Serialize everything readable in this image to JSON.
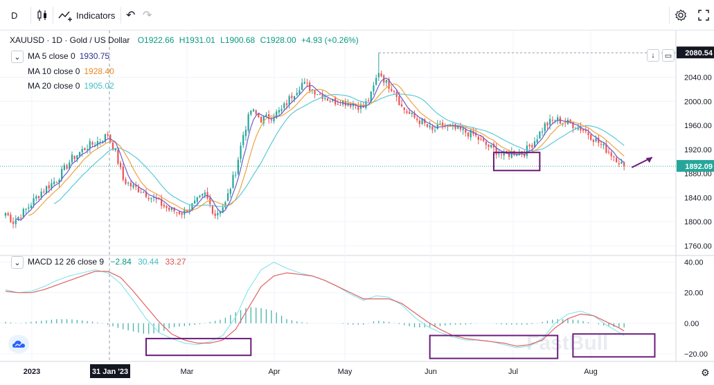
{
  "toolbar": {
    "interval": "D",
    "indicators_label": "Indicators"
  },
  "header": {
    "symbol": "XAUUSD · 1D · Gold / US Dollar",
    "open": "O1922.66",
    "high": "H1931.01",
    "low": "L1900.68",
    "close": "C1928.00",
    "change": "+4.93 (+0.26%)"
  },
  "ma_legend": [
    {
      "label": "MA 5 close 0",
      "value": "1930.75",
      "color": "#2b2d8f"
    },
    {
      "label": "MA 10 close 0",
      "value": "1928.40",
      "color": "#e8871e"
    },
    {
      "label": "MA 20 close 0",
      "value": "1905.02",
      "color": "#42bfc5"
    }
  ],
  "macd_legend": {
    "label": "MACD 12 26 close 9",
    "hist": "−2.84",
    "macd": "30.44",
    "signal": "33.27"
  },
  "watermark": "FastBull",
  "colors": {
    "up": "#26a69a",
    "down": "#ef5350",
    "ma5": "#6a5acd",
    "ma10": "#f0a040",
    "ma20": "#5bc8d8",
    "macd": "#8ee4ee",
    "signal": "#e06060",
    "hist_up": "#26a69a",
    "hist_down": "#26a69a",
    "box": "#6a1b7a",
    "arrow": "#6a1b7a"
  },
  "chart_data": [
    {
      "type": "candlestick",
      "title": "XAUUSD · 1D · Gold / US Dollar",
      "x_tick_labels": [
        "2023",
        "31 Jan '23",
        "Mar",
        "Apr",
        "May",
        "Jun",
        "Jul",
        "Aug"
      ],
      "x_tick_months": [
        "2023-01",
        "2023-01-31",
        "2023-03",
        "2023-04",
        "2023-05",
        "2023-06",
        "2023-07",
        "2023-08"
      ],
      "y_ticks": [
        1760,
        1800,
        1840,
        1880,
        1920,
        1960,
        2000,
        2040
      ],
      "ylim": [
        1745,
        2090
      ],
      "price_path": [
        [
          0,
          1815
        ],
        [
          3,
          1800
        ],
        [
          8,
          1820
        ],
        [
          14,
          1850
        ],
        [
          20,
          1870
        ],
        [
          26,
          1905
        ],
        [
          32,
          1925
        ],
        [
          37,
          1935
        ],
        [
          40,
          1945
        ],
        [
          43,
          1915
        ],
        [
          46,
          1870
        ],
        [
          49,
          1860
        ],
        [
          54,
          1850
        ],
        [
          59,
          1835
        ],
        [
          64,
          1820
        ],
        [
          69,
          1815
        ],
        [
          74,
          1830
        ],
        [
          78,
          1845
        ],
        [
          82,
          1812
        ],
        [
          86,
          1830
        ],
        [
          90,
          1885
        ],
        [
          93,
          1945
        ],
        [
          96,
          1985
        ],
        [
          100,
          1970
        ],
        [
          104,
          1975
        ],
        [
          108,
          1985
        ],
        [
          112,
          2010
        ],
        [
          116,
          2030
        ],
        [
          120,
          2020
        ],
        [
          124,
          2010
        ],
        [
          128,
          2000
        ],
        [
          132,
          2000
        ],
        [
          136,
          1995
        ],
        [
          140,
          1990
        ],
        [
          143,
          2010
        ],
        [
          146,
          2050
        ],
        [
          149,
          2030
        ],
        [
          152,
          2020
        ],
        [
          155,
          1990
        ],
        [
          159,
          1975
        ],
        [
          163,
          1965
        ],
        [
          167,
          1950
        ],
        [
          171,
          1960
        ],
        [
          175,
          1955
        ],
        [
          179,
          1950
        ],
        [
          183,
          1945
        ],
        [
          187,
          1930
        ],
        [
          191,
          1920
        ],
        [
          195,
          1910
        ],
        [
          199,
          1915
        ],
        [
          203,
          1915
        ],
        [
          207,
          1935
        ],
        [
          211,
          1960
        ],
        [
          215,
          1970
        ],
        [
          219,
          1965
        ],
        [
          223,
          1960
        ],
        [
          227,
          1950
        ],
        [
          231,
          1935
        ],
        [
          235,
          1920
        ],
        [
          239,
          1905
        ],
        [
          242,
          1892
        ]
      ],
      "last_price_label": "1892.09",
      "high_price_label": "2080.54",
      "last_price": 1892.09,
      "high_price": 2080.54,
      "series": [
        {
          "name": "MA 5 close 0",
          "value": 1930.75
        },
        {
          "name": "MA 10 close 0",
          "value": 1928.4
        },
        {
          "name": "MA 20 close 0",
          "value": 1905.02
        }
      ]
    },
    {
      "type": "line",
      "title": "MACD 12 26 close 9",
      "y_ticks": [
        -20,
        0,
        20,
        40
      ],
      "ylim": [
        -25,
        43
      ],
      "series": [
        {
          "name": "MACD",
          "points": [
            [
              0,
              22
            ],
            [
              5,
              20
            ],
            [
              10,
              21
            ],
            [
              15,
              24
            ],
            [
              20,
              28
            ],
            [
              25,
              31
            ],
            [
              30,
              33
            ],
            [
              35,
              35
            ],
            [
              40,
              33
            ],
            [
              45,
              26
            ],
            [
              50,
              15
            ],
            [
              55,
              3
            ],
            [
              60,
              -6
            ],
            [
              65,
              -10
            ],
            [
              70,
              -13
            ],
            [
              75,
              -14
            ],
            [
              80,
              -12
            ],
            [
              85,
              -8
            ],
            [
              90,
              4
            ],
            [
              95,
              22
            ],
            [
              100,
              35
            ],
            [
              105,
              40
            ],
            [
              110,
              36
            ],
            [
              115,
              33
            ],
            [
              120,
              31
            ],
            [
              125,
              28
            ],
            [
              130,
              24
            ],
            [
              135,
              19
            ],
            [
              140,
              15
            ],
            [
              145,
              18
            ],
            [
              150,
              17
            ],
            [
              155,
              12
            ],
            [
              160,
              4
            ],
            [
              165,
              -2
            ],
            [
              170,
              -6
            ],
            [
              175,
              -9
            ],
            [
              180,
              -11
            ],
            [
              185,
              -11
            ],
            [
              190,
              -12
            ],
            [
              195,
              -14
            ],
            [
              200,
              -16
            ],
            [
              205,
              -15
            ],
            [
              210,
              -10
            ],
            [
              215,
              0
            ],
            [
              220,
              6
            ],
            [
              225,
              8
            ],
            [
              230,
              5
            ],
            [
              235,
              -1
            ],
            [
              240,
              -6
            ],
            [
              242,
              -8
            ]
          ]
        },
        {
          "name": "Signal",
          "points": [
            [
              0,
              21
            ],
            [
              5,
              20
            ],
            [
              10,
              20
            ],
            [
              15,
              22
            ],
            [
              20,
              25
            ],
            [
              25,
              28
            ],
            [
              30,
              31
            ],
            [
              35,
              34
            ],
            [
              40,
              34
            ],
            [
              45,
              30
            ],
            [
              50,
              21
            ],
            [
              55,
              11
            ],
            [
              60,
              1
            ],
            [
              65,
              -7
            ],
            [
              70,
              -11
            ],
            [
              75,
              -13
            ],
            [
              80,
              -13
            ],
            [
              85,
              -11
            ],
            [
              90,
              -4
            ],
            [
              95,
              10
            ],
            [
              100,
              24
            ],
            [
              105,
              31
            ],
            [
              110,
              33
            ],
            [
              115,
              32
            ],
            [
              120,
              31
            ],
            [
              125,
              28
            ],
            [
              130,
              24
            ],
            [
              135,
              20
            ],
            [
              140,
              16
            ],
            [
              145,
              16
            ],
            [
              150,
              16
            ],
            [
              155,
              13
            ],
            [
              160,
              7
            ],
            [
              165,
              1
            ],
            [
              170,
              -4
            ],
            [
              175,
              -8
            ],
            [
              180,
              -10
            ],
            [
              185,
              -11
            ],
            [
              190,
              -12
            ],
            [
              195,
              -13
            ],
            [
              200,
              -15
            ],
            [
              205,
              -14
            ],
            [
              210,
              -11
            ],
            [
              215,
              -3
            ],
            [
              220,
              3
            ],
            [
              225,
              6
            ],
            [
              230,
              5
            ],
            [
              235,
              1
            ],
            [
              240,
              -3
            ],
            [
              242,
              -5
            ]
          ]
        }
      ]
    }
  ],
  "annotations": [
    {
      "kind": "box",
      "panel": "price",
      "x0": 191,
      "x1": 209,
      "y0": 1885,
      "y1": 1915
    },
    {
      "kind": "box",
      "panel": "macd",
      "x0": 55,
      "x1": 96,
      "y0": -21,
      "y1": -10
    },
    {
      "kind": "box",
      "panel": "macd",
      "x0": 166,
      "x1": 216,
      "y0": -23,
      "y1": -8
    },
    {
      "kind": "box",
      "panel": "macd",
      "x0": 222,
      "x1": 254,
      "y0": -22,
      "y1": -7
    }
  ]
}
